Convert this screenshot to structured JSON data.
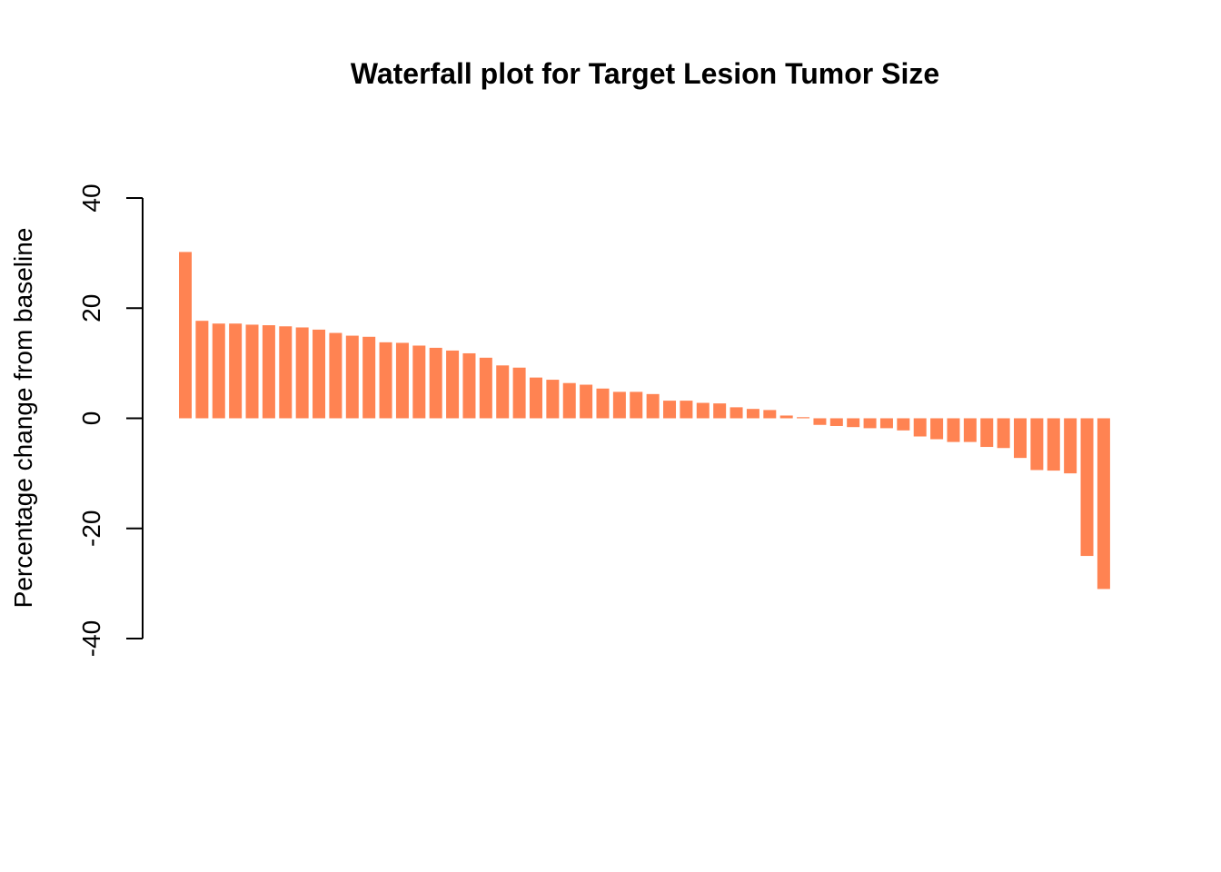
{
  "chart_data": {
    "type": "bar",
    "title": "Waterfall plot for Target Lesion Tumor Size",
    "xlabel": "",
    "ylabel": "Percentage change from baseline",
    "ylim": [
      -40,
      40
    ],
    "yticks": [
      -40,
      -20,
      0,
      20,
      40
    ],
    "grid": false,
    "legend": "none",
    "bar_color": "#FF8352",
    "values": [
      30.2,
      17.7,
      17.2,
      17.2,
      17.0,
      16.9,
      16.7,
      16.5,
      16.1,
      15.5,
      15.0,
      14.8,
      13.8,
      13.7,
      13.2,
      12.8,
      12.3,
      11.8,
      11.0,
      9.6,
      9.2,
      7.4,
      7.0,
      6.4,
      6.1,
      5.4,
      4.8,
      4.8,
      4.4,
      3.2,
      3.2,
      2.8,
      2.7,
      2.0,
      1.7,
      1.5,
      0.5,
      0.2,
      -1.2,
      -1.4,
      -1.6,
      -1.8,
      -1.8,
      -2.2,
      -3.3,
      -3.8,
      -4.3,
      -4.3,
      -5.2,
      -5.4,
      -7.2,
      -9.4,
      -9.5,
      -10.0,
      -25.0,
      -31.0
    ]
  }
}
